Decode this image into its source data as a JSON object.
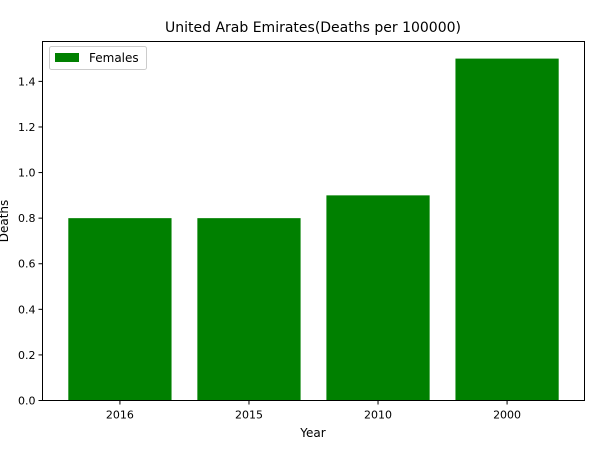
{
  "chart_data": {
    "type": "bar",
    "title": "United Arab Emirates(Deaths per 100000)",
    "xlabel": "Year",
    "ylabel": "Deaths",
    "categories": [
      "2016",
      "2015",
      "2010",
      "2000"
    ],
    "series": [
      {
        "name": "Females",
        "values": [
          0.8,
          0.8,
          0.9,
          1.5
        ],
        "color": "#008000"
      }
    ],
    "ylim": [
      0,
      1.575
    ],
    "yticks": [
      0.0,
      0.2,
      0.4,
      0.6,
      0.8,
      1.0,
      1.2,
      1.4
    ],
    "ytick_labels": [
      "0.0",
      "0.2",
      "0.4",
      "0.6",
      "0.8",
      "1.0",
      "1.2",
      "1.4"
    ],
    "grid": false,
    "legend_position": "top-left"
  }
}
